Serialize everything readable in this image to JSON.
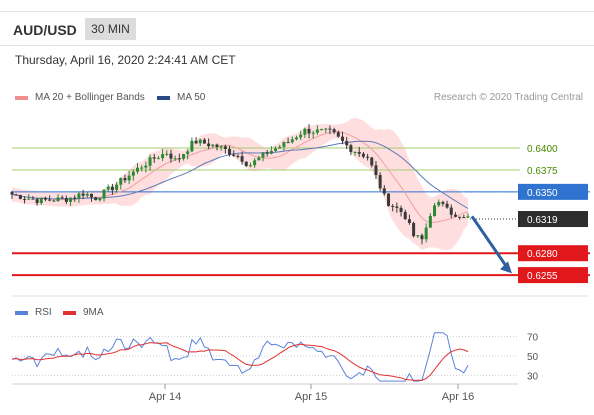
{
  "header": {
    "symbol": "AUD/USD",
    "timeframe": "30 MIN",
    "datetime": "Thursday, April 16, 2020 2:24:41 AM CET"
  },
  "legend": {
    "bollinger_label": "MA 20 + Bollinger Bands",
    "ma50_label": "MA 50",
    "credit": "Research © 2020 Trading Central"
  },
  "colors": {
    "up_candle": "#2a8a33",
    "down_candle": "#3a3a3a",
    "bollinger_band": "#fdd3d3",
    "ma20": "#f0a0a0",
    "ma50": "#5d79b8",
    "resistance": "#a6cc70",
    "pivot": "#2f72d0",
    "support": "#e0181b",
    "arrow": "#2e5f9e",
    "rsi": "#5b82d8",
    "rsi_ma": "#e03030"
  },
  "chart_data": [
    {
      "type": "candlestick",
      "x_ticks": [
        "Apr 14",
        "Apr 15",
        "Apr 16"
      ],
      "ylim": [
        0.6238,
        0.6432
      ],
      "last_price": 0.6319,
      "levels": [
        {
          "value": 0.64,
          "label": "0.6400",
          "kind": "resistance"
        },
        {
          "value": 0.6375,
          "label": "0.6375",
          "kind": "resistance"
        },
        {
          "value": 0.635,
          "label": "0.6350",
          "kind": "pivot"
        },
        {
          "value": 0.628,
          "label": "0.6280",
          "kind": "support"
        },
        {
          "value": 0.6255,
          "label": "0.6255",
          "kind": "support"
        }
      ],
      "series": [
        {
          "name": "MA 20 + Bollinger Bands"
        },
        {
          "name": "MA 50"
        }
      ],
      "scenario_arrow": {
        "from": 0.6322,
        "to": 0.6257
      }
    },
    {
      "type": "line",
      "series": [
        {
          "name": "RSI"
        },
        {
          "name": "9MA"
        }
      ],
      "yticks": [
        70,
        50,
        30
      ],
      "ylim": [
        20,
        80
      ]
    }
  ]
}
